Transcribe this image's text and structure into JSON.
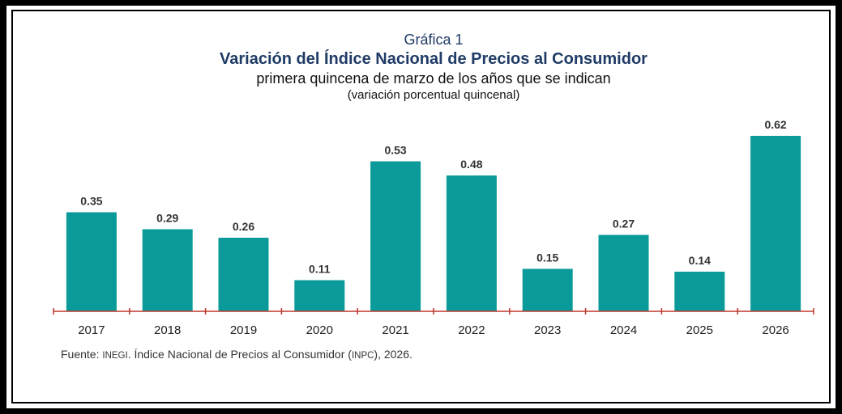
{
  "chart_data": {
    "type": "bar",
    "label": "Gráfica 1",
    "title": "Variación del Índice Nacional de Precios al Consumidor",
    "subtitle": "primera quincena de marzo de los años que se indican",
    "unit": "(variación porcentual quincenal)",
    "categories": [
      "2017",
      "2018",
      "2019",
      "2020",
      "2021",
      "2022",
      "2023",
      "2024",
      "2025",
      "2026"
    ],
    "values": [
      0.35,
      0.29,
      0.26,
      0.11,
      0.53,
      0.48,
      0.15,
      0.27,
      0.14,
      0.62
    ],
    "value_labels": [
      "0.35",
      "0.29",
      "0.26",
      "0.11",
      "0.53",
      "0.48",
      "0.15",
      "0.27",
      "0.14",
      "0.62"
    ],
    "ylim": [
      0,
      0.62
    ],
    "bar_color": "#0a9a9a",
    "axis_color": "#c0392b",
    "grid": false,
    "legend": "none"
  },
  "source": {
    "prefix": "Fuente: ",
    "org": "INEGI",
    "text1": ". Índice Nacional de Precios al Consumidor (",
    "abbr": "INPC",
    "text2": "), 2026."
  }
}
